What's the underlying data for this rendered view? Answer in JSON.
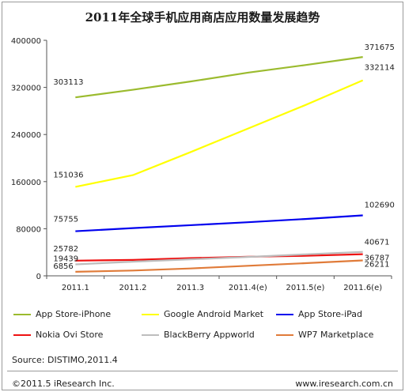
{
  "chart_data": {
    "type": "line",
    "title": "2011年全球手机应用商店应用数量发展趋势",
    "categories": [
      "2011.1",
      "2011.2",
      "2011.3",
      "2011.4(e)",
      "2011.5(e)",
      "2011.6(e)"
    ],
    "ylim": [
      0,
      400000
    ],
    "yticks": [
      "0",
      "80000",
      "160000",
      "240000",
      "320000",
      "400000"
    ],
    "ytick_values": [
      0,
      80000,
      160000,
      240000,
      320000,
      400000
    ],
    "grid": false,
    "legend_position": "bottom",
    "series": [
      {
        "name": "App Store-iPhone",
        "color": "#9bbb2e",
        "values": [
          303113,
          316000,
          330000,
          345000,
          358000,
          371675
        ],
        "labels": [
          "303113",
          "",
          "",
          "",
          "",
          "371675"
        ]
      },
      {
        "name": "Google Android Market",
        "color": "#ffff00",
        "values": [
          151036,
          171000,
          210000,
          250000,
          290000,
          332114
        ],
        "labels": [
          "151036",
          "",
          "",
          "",
          "",
          "332114"
        ]
      },
      {
        "name": "App Store-iPad",
        "color": "#0000ee",
        "values": [
          75755,
          81000,
          86000,
          91000,
          96500,
          102690
        ],
        "labels": [
          "75755",
          "",
          "",
          "",
          "",
          "102690"
        ]
      },
      {
        "name": "Nokia Ovi Store",
        "color": "#ee1111",
        "values": [
          25782,
          27000,
          30000,
          32500,
          34000,
          36787
        ],
        "labels": [
          "25782",
          "",
          "",
          "",
          "",
          "36787"
        ]
      },
      {
        "name": "BlackBerry Appworld",
        "color": "#bdbdbd",
        "values": [
          19439,
          24000,
          28000,
          32000,
          36500,
          40671
        ],
        "labels": [
          "19439",
          "",
          "",
          "",
          "",
          "40671"
        ]
      },
      {
        "name": "WP7 Marketplace",
        "color": "#e07b39",
        "values": [
          6856,
          9000,
          12500,
          17000,
          21500,
          26211
        ],
        "labels": [
          "6856",
          "",
          "",
          "",
          "",
          "26211"
        ]
      }
    ]
  },
  "footer": {
    "source": "Source: DISTIMO,2011.4",
    "copyright": "©2011.5 iResearch Inc.",
    "website": "www.iresearch.com.cn"
  }
}
